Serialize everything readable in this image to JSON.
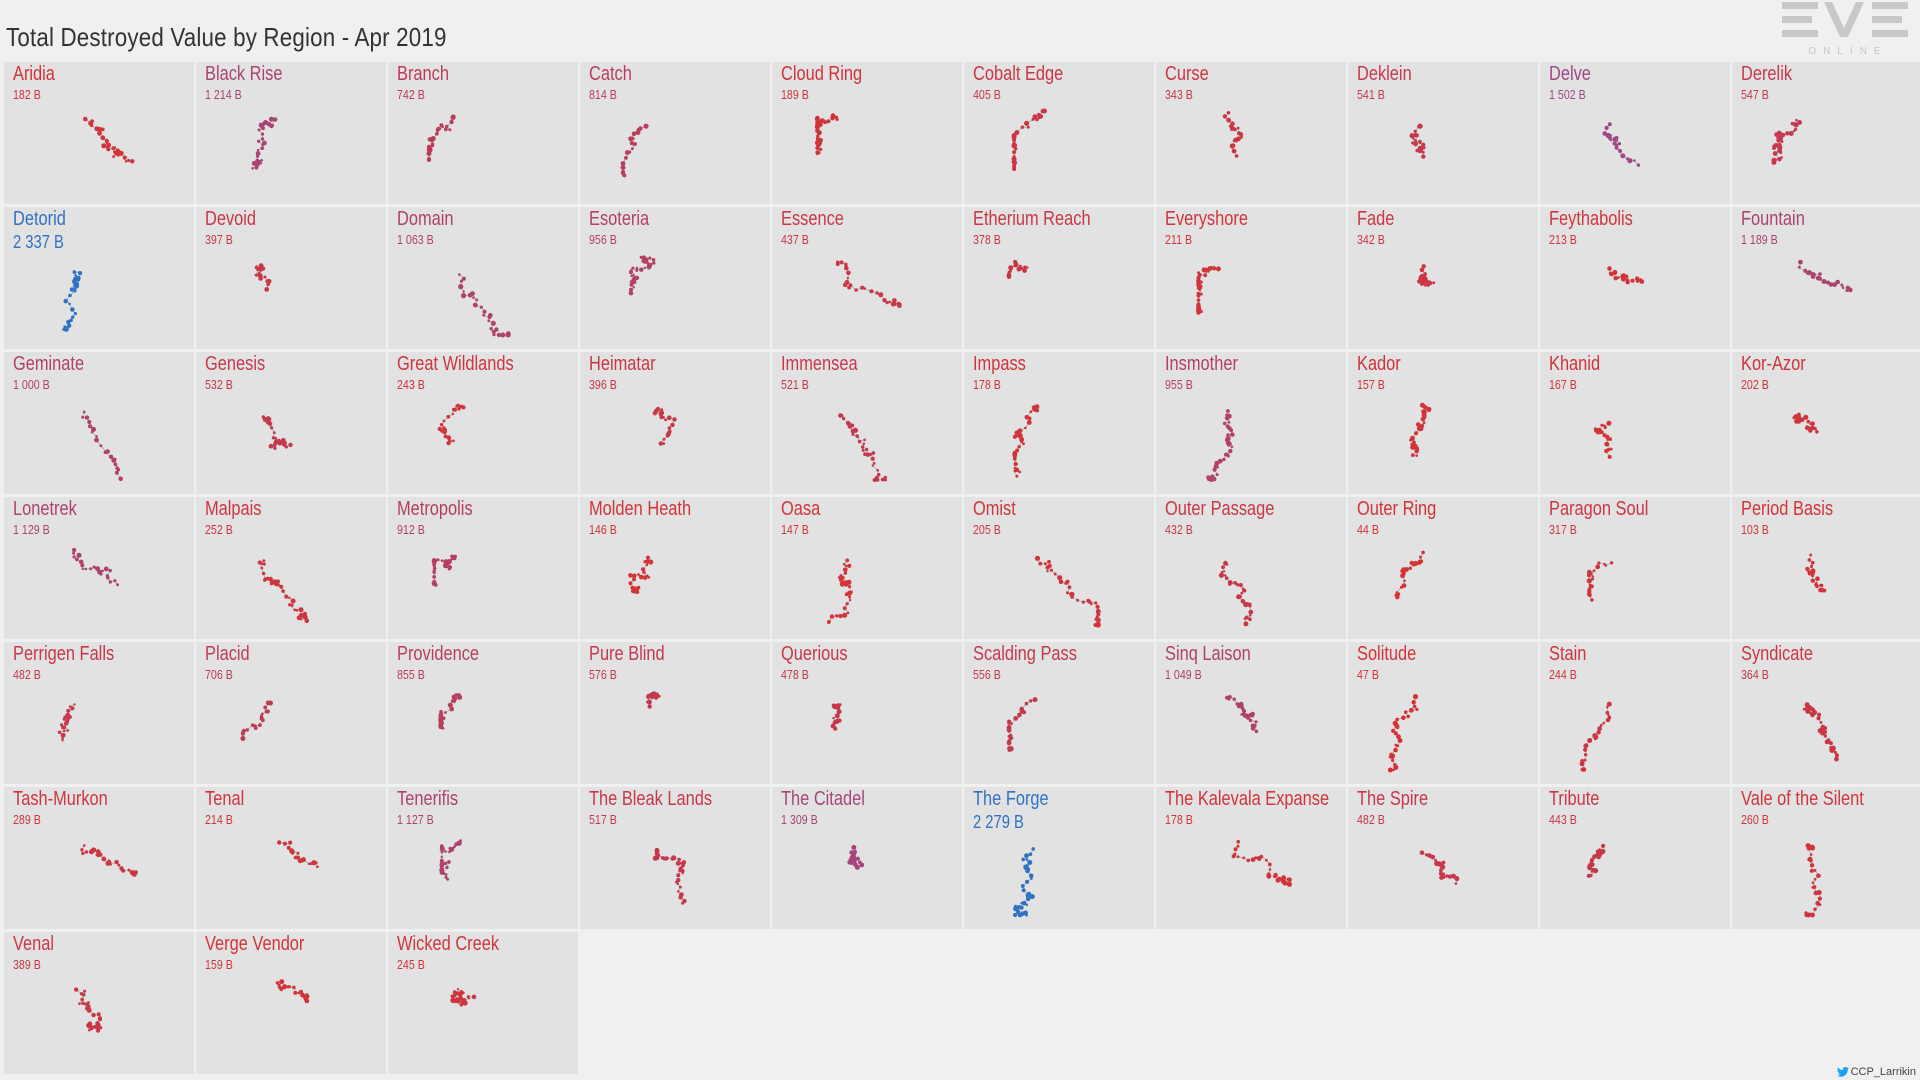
{
  "title": "Total Destroyed Value by Region - Apr 2019",
  "logo": {
    "icon": "eve-online-logo",
    "text": "EVE",
    "subtext": "ONLINE"
  },
  "credit": {
    "icon": "twitter-icon",
    "text": "CCP_Larrikin"
  },
  "colors": {
    "low": "#d63232",
    "mid": "#9a4a8a",
    "high": "#2f72c4",
    "background": "#e2e2e2"
  },
  "chart_data": {
    "type": "scatter",
    "title": "Total Destroyed Value by Region - Apr 2019",
    "unit": "B",
    "regions": [
      {
        "name": "Aridia",
        "value": "182 B",
        "num": 182
      },
      {
        "name": "Black Rise",
        "value": "1 214 B",
        "num": 1214
      },
      {
        "name": "Branch",
        "value": "742 B",
        "num": 742
      },
      {
        "name": "Catch",
        "value": "814 B",
        "num": 814
      },
      {
        "name": "Cloud Ring",
        "value": "189 B",
        "num": 189
      },
      {
        "name": "Cobalt Edge",
        "value": "405 B",
        "num": 405
      },
      {
        "name": "Curse",
        "value": "343 B",
        "num": 343
      },
      {
        "name": "Deklein",
        "value": "541 B",
        "num": 541
      },
      {
        "name": "Delve",
        "value": "1 502 B",
        "num": 1502
      },
      {
        "name": "Derelik",
        "value": "547 B",
        "num": 547
      },
      {
        "name": "Detorid",
        "value": "2 337 B",
        "num": 2337
      },
      {
        "name": "Devoid",
        "value": "397 B",
        "num": 397
      },
      {
        "name": "Domain",
        "value": "1 063 B",
        "num": 1063
      },
      {
        "name": "Esoteria",
        "value": "956 B",
        "num": 956
      },
      {
        "name": "Essence",
        "value": "437 B",
        "num": 437
      },
      {
        "name": "Etherium Reach",
        "value": "378 B",
        "num": 378
      },
      {
        "name": "Everyshore",
        "value": "211 B",
        "num": 211
      },
      {
        "name": "Fade",
        "value": "342 B",
        "num": 342
      },
      {
        "name": "Feythabolis",
        "value": "213 B",
        "num": 213
      },
      {
        "name": "Fountain",
        "value": "1 189 B",
        "num": 1189
      },
      {
        "name": "Geminate",
        "value": "1 000 B",
        "num": 1000
      },
      {
        "name": "Genesis",
        "value": "532 B",
        "num": 532
      },
      {
        "name": "Great Wildlands",
        "value": "243 B",
        "num": 243
      },
      {
        "name": "Heimatar",
        "value": "396 B",
        "num": 396
      },
      {
        "name": "Immensea",
        "value": "521 B",
        "num": 521
      },
      {
        "name": "Impass",
        "value": "178 B",
        "num": 178
      },
      {
        "name": "Insmother",
        "value": "955 B",
        "num": 955
      },
      {
        "name": "Kador",
        "value": "157 B",
        "num": 157
      },
      {
        "name": "Khanid",
        "value": "167 B",
        "num": 167
      },
      {
        "name": "Kor-Azor",
        "value": "202 B",
        "num": 202
      },
      {
        "name": "Lonetrek",
        "value": "1 129 B",
        "num": 1129
      },
      {
        "name": "Malpais",
        "value": "252 B",
        "num": 252
      },
      {
        "name": "Metropolis",
        "value": "912 B",
        "num": 912
      },
      {
        "name": "Molden Heath",
        "value": "146 B",
        "num": 146
      },
      {
        "name": "Oasa",
        "value": "147 B",
        "num": 147
      },
      {
        "name": "Omist",
        "value": "205 B",
        "num": 205
      },
      {
        "name": "Outer Passage",
        "value": "432 B",
        "num": 432
      },
      {
        "name": "Outer Ring",
        "value": "44 B",
        "num": 44
      },
      {
        "name": "Paragon Soul",
        "value": "317 B",
        "num": 317
      },
      {
        "name": "Period Basis",
        "value": "103 B",
        "num": 103
      },
      {
        "name": "Perrigen Falls",
        "value": "482 B",
        "num": 482
      },
      {
        "name": "Placid",
        "value": "706 B",
        "num": 706
      },
      {
        "name": "Providence",
        "value": "855 B",
        "num": 855
      },
      {
        "name": "Pure Blind",
        "value": "576 B",
        "num": 576
      },
      {
        "name": "Querious",
        "value": "478 B",
        "num": 478
      },
      {
        "name": "Scalding Pass",
        "value": "556 B",
        "num": 556
      },
      {
        "name": "Sinq Laison",
        "value": "1 049 B",
        "num": 1049
      },
      {
        "name": "Solitude",
        "value": "47 B",
        "num": 47
      },
      {
        "name": "Stain",
        "value": "244 B",
        "num": 244
      },
      {
        "name": "Syndicate",
        "value": "364 B",
        "num": 364
      },
      {
        "name": "Tash-Murkon",
        "value": "289 B",
        "num": 289
      },
      {
        "name": "Tenal",
        "value": "214 B",
        "num": 214
      },
      {
        "name": "Tenerifis",
        "value": "1 127 B",
        "num": 1127
      },
      {
        "name": "The Bleak Lands",
        "value": "517 B",
        "num": 517
      },
      {
        "name": "The Citadel",
        "value": "1 309 B",
        "num": 1309
      },
      {
        "name": "The Forge",
        "value": "2 279 B",
        "num": 2279
      },
      {
        "name": "The Kalevala Expanse",
        "value": "178 B",
        "num": 178
      },
      {
        "name": "The Spire",
        "value": "482 B",
        "num": 482
      },
      {
        "name": "Tribute",
        "value": "443 B",
        "num": 443
      },
      {
        "name": "Vale of the Silent",
        "value": "260 B",
        "num": 260
      },
      {
        "name": "Venal",
        "value": "389 B",
        "num": 389
      },
      {
        "name": "Verge Vendor",
        "value": "159 B",
        "num": 159
      },
      {
        "name": "Wicked Creek",
        "value": "245 B",
        "num": 245
      }
    ]
  }
}
